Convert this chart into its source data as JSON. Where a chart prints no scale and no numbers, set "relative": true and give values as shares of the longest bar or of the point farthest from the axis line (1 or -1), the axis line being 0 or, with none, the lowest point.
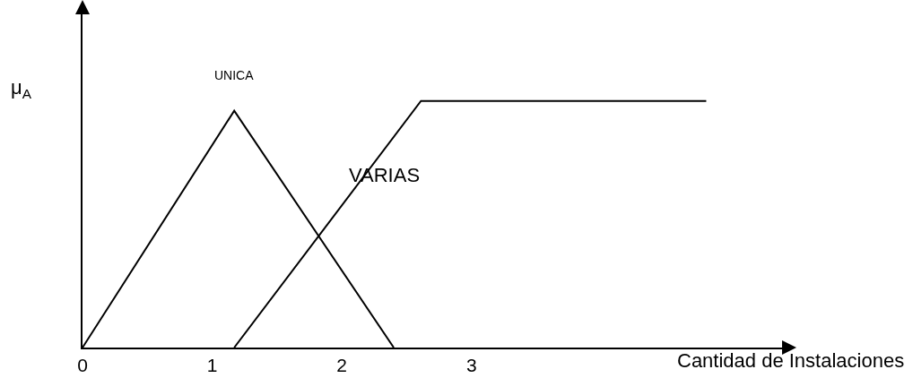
{
  "chart_data": {
    "type": "line",
    "relative": true,
    "xlabel": "Cantidad de Instalaciones",
    "ylabel": "μ$_{A}$",
    "xlim": [
      0,
      5.45
    ],
    "xticks": [
      0,
      1,
      2,
      3
    ],
    "tick_labels": "x",
    "grid": false,
    "legend": false,
    "marker": "none",
    "line_style": "solid",
    "series": [
      {
        "name": "UNICA",
        "color": "#000000",
        "x": [
          0,
          1.17,
          2.4
        ],
        "values": [
          0,
          0.96,
          0
        ]
      },
      {
        "name": "VARIAS",
        "color": "#000000",
        "x": [
          1.17,
          2.61,
          4.81
        ],
        "values": [
          0,
          1,
          1
        ]
      }
    ]
  }
}
